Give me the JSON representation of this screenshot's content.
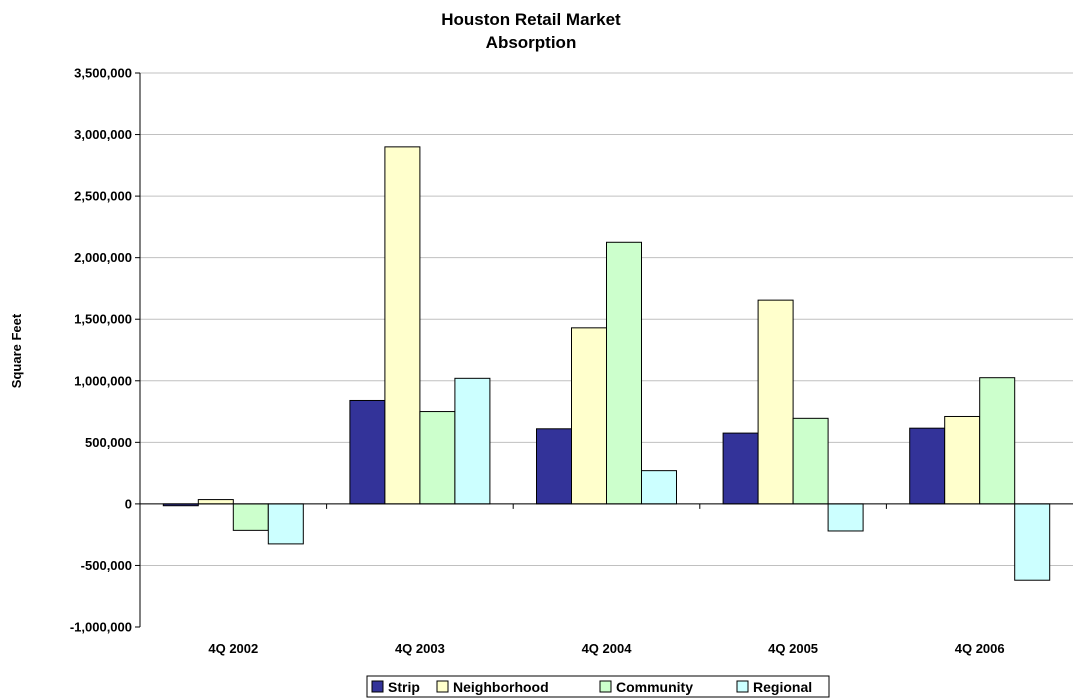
{
  "chart_data": {
    "type": "bar",
    "title": "Houston Retail Market",
    "subtitle": "Absorption",
    "ylabel": "Square Feet",
    "xlabel": "",
    "ylim": [
      -1000000,
      3500000
    ],
    "y_ticks": [
      -1000000,
      -500000,
      0,
      500000,
      1000000,
      1500000,
      2000000,
      2500000,
      3000000,
      3500000
    ],
    "y_tick_labels": [
      "-1,000,000",
      "-500,000",
      "0",
      "500,000",
      "1,000,000",
      "1,500,000",
      "2,000,000",
      "2,500,000",
      "3,000,000",
      "3,500,000"
    ],
    "grid": true,
    "legend_position": "bottom",
    "categories": [
      "4Q 2002",
      "4Q 2003",
      "4Q 2004",
      "4Q 2005",
      "4Q 2006"
    ],
    "series": [
      {
        "name": "Strip",
        "color": "#333399",
        "values": [
          -15000,
          840000,
          610000,
          575000,
          615000
        ]
      },
      {
        "name": "Neighborhood",
        "color": "#FFFFCC",
        "values": [
          35000,
          2900000,
          1430000,
          1655000,
          710000
        ]
      },
      {
        "name": "Community",
        "color": "#CCFFCC",
        "values": [
          -215000,
          750000,
          2125000,
          695000,
          1025000
        ]
      },
      {
        "name": "Regional",
        "color": "#CCFFFF",
        "values": [
          -325000,
          1020000,
          270000,
          -220000,
          -620000
        ]
      }
    ]
  }
}
